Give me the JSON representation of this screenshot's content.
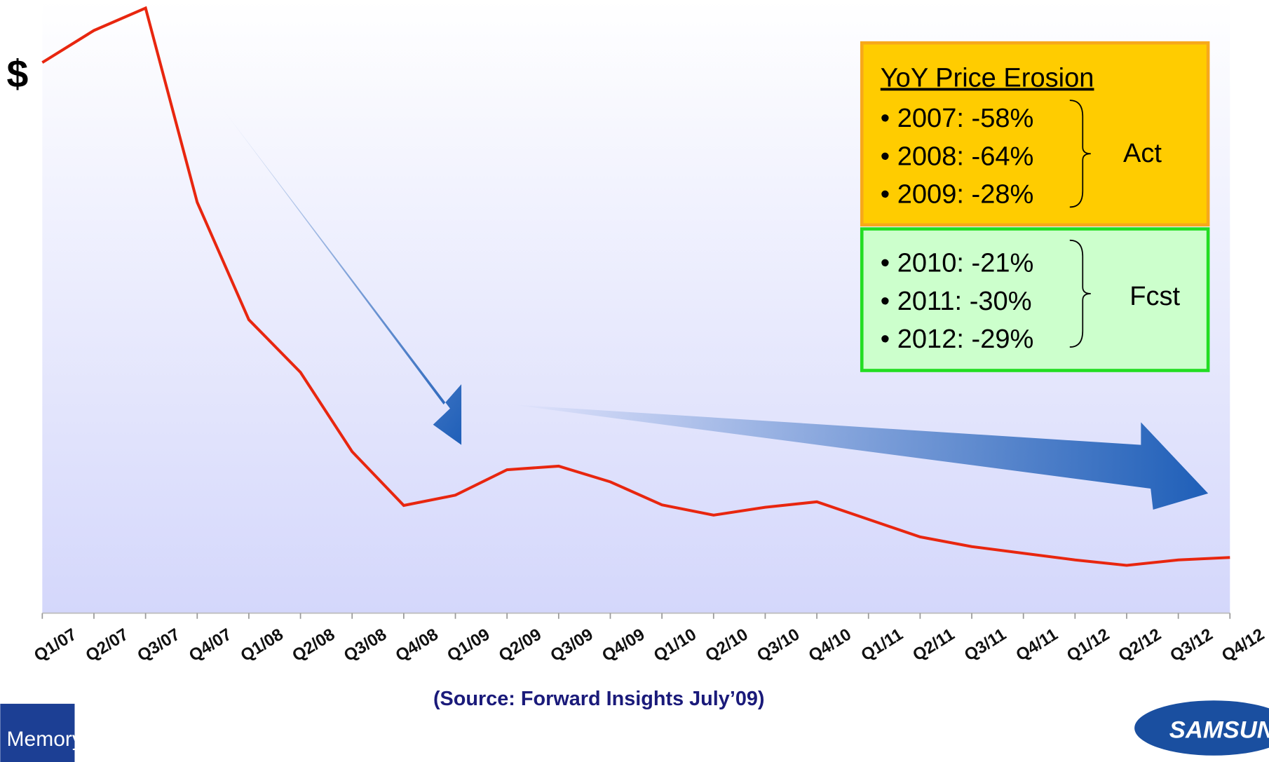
{
  "chart_data": {
    "type": "line",
    "y_label": "$",
    "categories": [
      "Q1/07",
      "Q2/07",
      "Q3/07",
      "Q4/07",
      "Q1/08",
      "Q2/08",
      "Q3/08",
      "Q4/08",
      "Q1/09",
      "Q2/09",
      "Q3/09",
      "Q4/09",
      "Q1/10",
      "Q2/10",
      "Q3/10",
      "Q4/10",
      "Q1/11",
      "Q2/11",
      "Q3/11",
      "Q4/11",
      "Q1/12",
      "Q2/12",
      "Q3/12",
      "Q4/12"
    ],
    "values": [
      91,
      96.3,
      100,
      67.9,
      48.5,
      39.8,
      26.7,
      17.8,
      19.5,
      23.7,
      24.3,
      21.7,
      17.9,
      16.2,
      17.5,
      18.4,
      15.5,
      12.6,
      11.0,
      9.9,
      8.8,
      7.9,
      8.8,
      9.2
    ],
    "color": "#e8260f",
    "ylim": [
      0,
      100
    ],
    "source": "(Source: Forward Insights July’09)",
    "erosion_title": "YoY Price Erosion",
    "actual": [
      "2007: -58%",
      "2008: -64%",
      "2009: -28%"
    ],
    "actual_label": "Act",
    "forecast": [
      "2010: -21%",
      "2011: -30%",
      "2012: -29%"
    ],
    "forecast_label": "Fcst",
    "logos": [
      "Memory",
      "SAMSUNG"
    ]
  }
}
